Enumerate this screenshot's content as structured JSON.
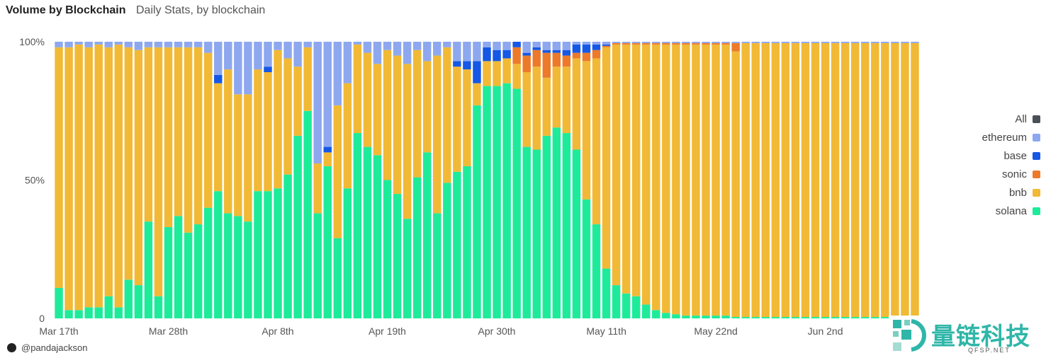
{
  "header": {
    "title": "Volume by Blockchain",
    "subtitle": "Daily Stats, by blockchain"
  },
  "credit": {
    "handle": "@pandajackson",
    "icon": "panda-icon"
  },
  "watermark": {
    "text": "量链科技",
    "sub": "QFSP.NET"
  },
  "legend": [
    {
      "label": "All",
      "color": "#4b4f58"
    },
    {
      "label": "ethereum",
      "color": "#8ea8ef"
    },
    {
      "label": "base",
      "color": "#1658e6"
    },
    {
      "label": "sonic",
      "color": "#ec7a2a"
    },
    {
      "label": "bnb",
      "color": "#f1b935"
    },
    {
      "label": "solana",
      "color": "#1eeb9a"
    }
  ],
  "chart_data": {
    "type": "bar",
    "stacked": "percent",
    "ylim": [
      0,
      100
    ],
    "yticks": [
      {
        "value": 0,
        "label": "0"
      },
      {
        "value": 50,
        "label": "50%"
      },
      {
        "value": 100,
        "label": "100%"
      }
    ],
    "xticks": [
      {
        "index": 0,
        "label": "Mar 17th"
      },
      {
        "index": 11,
        "label": "Mar 28th"
      },
      {
        "index": 22,
        "label": "Apr 8th"
      },
      {
        "index": 33,
        "label": "Apr 19th"
      },
      {
        "index": 44,
        "label": "Apr 30th"
      },
      {
        "index": 55,
        "label": "May 11th"
      },
      {
        "index": 66,
        "label": "May 22nd"
      },
      {
        "index": 77,
        "label": "Jun 2nd"
      }
    ],
    "grid": false,
    "legend_position": "right",
    "series": [
      {
        "name": "solana",
        "color": "#1eeb9a",
        "values": [
          11,
          3,
          3,
          4,
          4,
          8,
          4,
          14,
          12,
          35,
          8,
          33,
          37,
          31,
          34,
          40,
          46,
          38,
          37,
          35,
          46,
          46,
          47,
          52,
          66,
          75,
          38,
          55,
          29,
          47,
          67,
          62,
          59,
          50,
          45,
          36,
          51,
          60,
          38,
          49,
          53,
          55,
          77,
          84,
          84,
          85,
          83,
          62,
          61,
          66,
          69,
          67,
          61,
          43,
          34,
          18,
          12,
          9,
          8,
          5,
          3,
          2,
          1.5,
          1,
          1,
          1,
          1,
          1,
          0.5,
          0.5,
          0.5,
          0.5,
          0.5,
          0.5,
          0.5,
          0.5,
          0.5,
          0.5,
          0.5,
          0.5,
          0.5,
          0.5,
          0.5,
          0.5,
          0.5,
          0.5,
          0.5
        ]
      },
      {
        "name": "bnb",
        "color": "#f1b935",
        "values": [
          87,
          95,
          96,
          94,
          95,
          90,
          95,
          84,
          85,
          63,
          90,
          65,
          61,
          67,
          64,
          56,
          39,
          52,
          44,
          46,
          44,
          43,
          50,
          42,
          25,
          23,
          18,
          5,
          48,
          38,
          32,
          34,
          33,
          47,
          50,
          56,
          46,
          33,
          57,
          49,
          38,
          35,
          8,
          9,
          9,
          9,
          9,
          27,
          30,
          21,
          22,
          24,
          33,
          50,
          60,
          80,
          87,
          90,
          91,
          94,
          96,
          97,
          97.5,
          98,
          98,
          98,
          98,
          98,
          96,
          99,
          99,
          99,
          99,
          99,
          99,
          99,
          99,
          99,
          99,
          99,
          99,
          99,
          99,
          99,
          99,
          99,
          99
        ]
      },
      {
        "name": "sonic",
        "color": "#ec7a2a",
        "values": [
          0,
          0,
          0,
          0,
          0,
          0,
          0,
          0,
          0,
          0,
          0,
          0,
          0,
          0,
          0,
          0,
          0,
          0,
          0,
          0,
          0,
          0,
          0,
          0,
          0,
          0,
          0,
          0,
          0,
          0,
          0,
          0,
          0,
          0,
          0,
          0,
          0,
          0,
          0,
          0,
          0,
          0,
          0,
          0,
          0,
          0,
          6,
          6,
          6,
          9,
          5,
          4,
          2,
          3,
          3,
          0.5,
          0.5,
          0.5,
          0.5,
          0.5,
          0.5,
          0.5,
          0.5,
          0.5,
          0.5,
          0.5,
          0.5,
          0.5,
          3,
          0,
          0,
          0,
          0,
          0,
          0,
          0,
          0,
          0,
          0,
          0,
          0,
          0,
          0,
          0,
          0,
          0,
          0
        ]
      },
      {
        "name": "base",
        "color": "#1658e6",
        "values": [
          0,
          0,
          0,
          0,
          0,
          0,
          0,
          0,
          0,
          0,
          0,
          0,
          0,
          0,
          0,
          0,
          3,
          0,
          0,
          0,
          0,
          2,
          0,
          0,
          0,
          0,
          0,
          2,
          0,
          0,
          0,
          0,
          0,
          0,
          0,
          0,
          0,
          0,
          0,
          0,
          2,
          3,
          8,
          5,
          4,
          3,
          2,
          1,
          1,
          1,
          1,
          2,
          3,
          3,
          2,
          0.5,
          0,
          0,
          0,
          0,
          0,
          0,
          0,
          0,
          0,
          0,
          0,
          0,
          0,
          0,
          0,
          0,
          0,
          0,
          0,
          0,
          0,
          0,
          0,
          0,
          0,
          0,
          0,
          0,
          0,
          0,
          0
        ]
      },
      {
        "name": "ethereum",
        "color": "#8ea8ef",
        "values": [
          2,
          2,
          1,
          2,
          1,
          2,
          1,
          2,
          3,
          2,
          2,
          2,
          2,
          2,
          2,
          4,
          12,
          10,
          19,
          19,
          10,
          9,
          3,
          6,
          9,
          2,
          44,
          38,
          23,
          15,
          1,
          4,
          8,
          3,
          5,
          8,
          3,
          7,
          5,
          2,
          7,
          7,
          7,
          2,
          3,
          3,
          0,
          4,
          2,
          3,
          3,
          3,
          1,
          1,
          1,
          1,
          0.5,
          0.5,
          0.5,
          0.5,
          0.5,
          0.5,
          0.5,
          0.5,
          0.5,
          0.5,
          0.5,
          0.5,
          0.5,
          0.5,
          0.5,
          0.5,
          0.5,
          0.5,
          0.5,
          0.5,
          0.5,
          0.5,
          0.5,
          0.5,
          0.5,
          0.5,
          0.5,
          0.5,
          0.5,
          0.5,
          0.5
        ]
      }
    ]
  }
}
